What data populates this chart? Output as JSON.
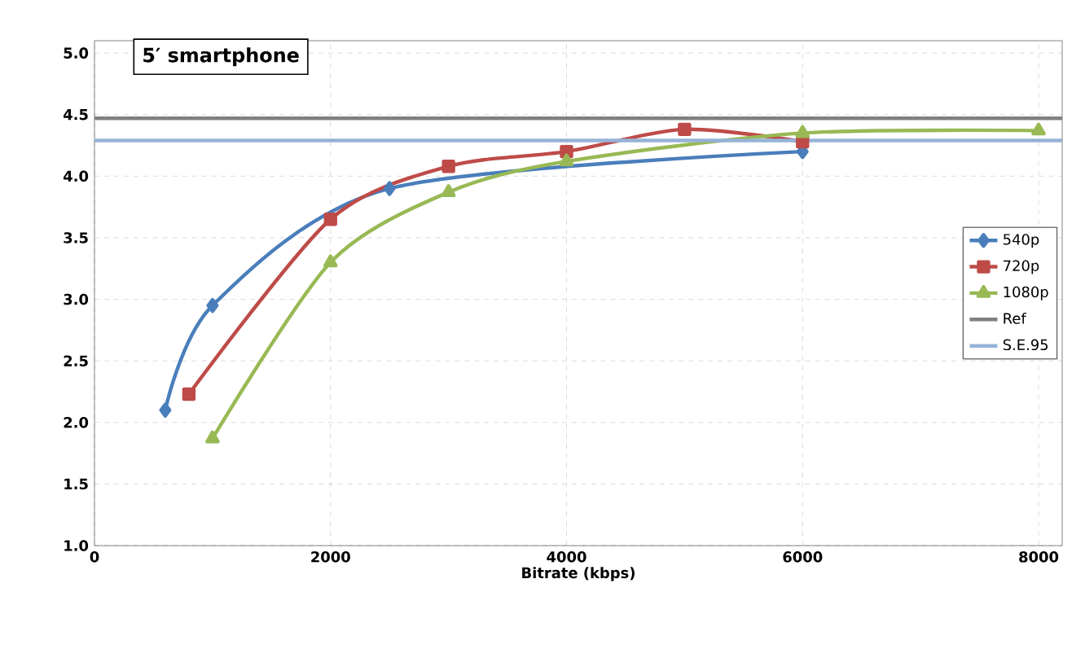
{
  "chart_data": {
    "type": "line",
    "title": "5′ smartphone",
    "xlabel": "Bitrate (kbps)",
    "xlim": [
      0,
      8200
    ],
    "ylim": [
      1.0,
      5.1
    ],
    "xticks": [
      0,
      2000,
      4000,
      6000,
      8000
    ],
    "yticks": [
      {
        "value": 1.0,
        "label": "1.0"
      },
      {
        "value": 1.5,
        "label": "1.5"
      },
      {
        "value": 2.0,
        "label": "2.0"
      },
      {
        "value": 2.5,
        "label": "2.5"
      },
      {
        "value": 3.0,
        "label": "3.0"
      },
      {
        "value": 3.5,
        "label": "3.5"
      },
      {
        "value": 4.0,
        "label": "4.0"
      },
      {
        "value": 4.5,
        "label": "4.5"
      },
      {
        "value": 5.0,
        "label": "5.0"
      }
    ],
    "grid": true,
    "legend": "right",
    "series": [
      {
        "name": "540p",
        "color": "#4a7ebb",
        "marker": "diamond",
        "x": [
          600,
          1000,
          2000,
          2500,
          4000,
          6000
        ],
        "values": [
          2.1,
          2.95,
          null,
          3.9,
          null,
          4.2
        ]
      },
      {
        "name": "720p",
        "color": "#be4b48",
        "marker": "square",
        "x": [
          800,
          2000,
          3000,
          4000,
          5000,
          6000
        ],
        "values": [
          2.23,
          3.65,
          4.08,
          4.2,
          4.38,
          4.28
        ]
      },
      {
        "name": "1080p",
        "color": "#98b954",
        "marker": "triangle",
        "x": [
          1000,
          2000,
          3000,
          4000,
          6000,
          8000
        ],
        "values": [
          1.87,
          3.3,
          3.87,
          4.12,
          4.35,
          4.37
        ]
      },
      {
        "name": "Ref",
        "color": "#808080",
        "marker": "none",
        "x": [
          0,
          8200
        ],
        "values": [
          4.47,
          4.47
        ]
      },
      {
        "name": "S.E.95",
        "color": "#95b3d7",
        "marker": "none",
        "x": [
          0,
          8200
        ],
        "values": [
          4.29,
          4.29
        ]
      }
    ]
  }
}
